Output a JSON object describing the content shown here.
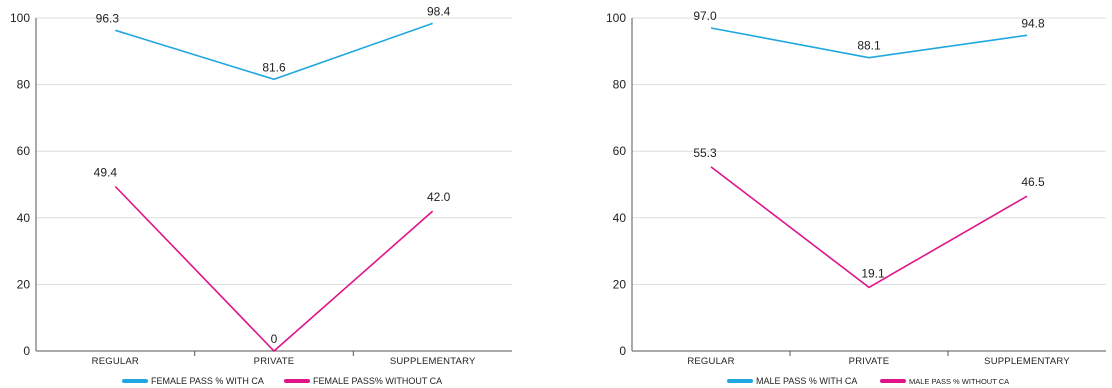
{
  "colors": {
    "with_ca": "#1ea7e0",
    "without_ca": "#e0148a",
    "grid": "#dddddd",
    "axis": "#555555"
  },
  "chart_data": [
    {
      "type": "line",
      "categories": [
        "REGULAR",
        "PRIVATE",
        "SUPPLEMENTARY"
      ],
      "ylim": [
        0,
        100
      ],
      "yticks": [
        0,
        20,
        40,
        60,
        80,
        100
      ],
      "grid": true,
      "legend_position": "bottom",
      "series": [
        {
          "name": "FEMALE PASS % WITH CA",
          "values": [
            96.3,
            81.6,
            98.4
          ],
          "labels": [
            "96.3",
            "81.6",
            "98.4"
          ]
        },
        {
          "name": "FEMALE PASS% WITHOUT CA",
          "values": [
            49.4,
            0,
            42.0
          ],
          "labels": [
            "49.4",
            "0",
            "42.0"
          ]
        }
      ]
    },
    {
      "type": "line",
      "categories": [
        "REGULAR",
        "PRIVATE",
        "SUPPLEMENTARY"
      ],
      "ylim": [
        0,
        100
      ],
      "yticks": [
        0,
        20,
        40,
        60,
        80,
        100
      ],
      "grid": true,
      "legend_position": "bottom",
      "series": [
        {
          "name": "MALE PASS % WITH CA",
          "values": [
            97.0,
            88.1,
            94.8
          ],
          "labels": [
            "97.0",
            "88.1",
            "94.8"
          ]
        },
        {
          "name": "MALE PASS % WITHOUT CA",
          "values": [
            55.3,
            19.1,
            46.5
          ],
          "labels": [
            "55.3",
            "19.1",
            "46.5"
          ]
        }
      ]
    }
  ]
}
